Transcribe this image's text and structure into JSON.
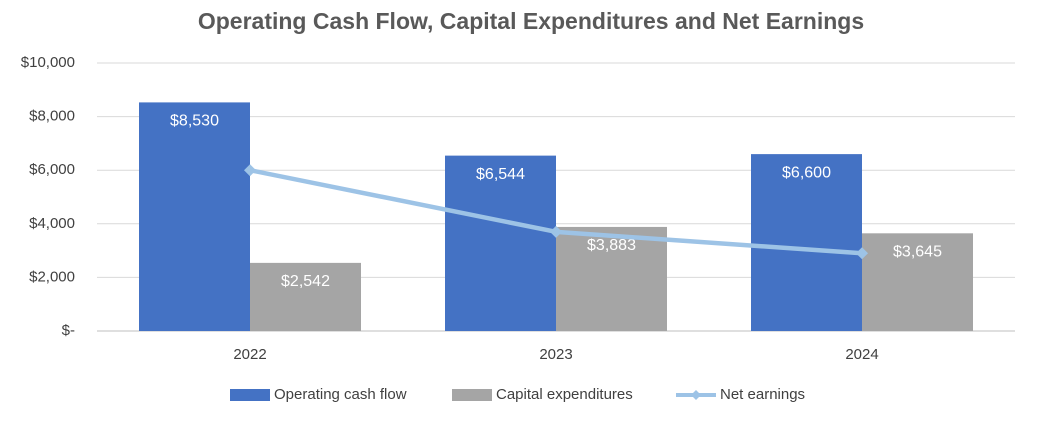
{
  "chart_data": {
    "type": "bar",
    "title": "Operating Cash Flow, Capital Expenditures and Net Earnings",
    "categories": [
      "2022",
      "2023",
      "2024"
    ],
    "series": [
      {
        "name": "Operating cash flow",
        "color": "#4472c4",
        "values": [
          8530,
          6544,
          6600
        ],
        "value_labels": [
          "$8,530",
          "$6,544",
          "$6,600"
        ]
      },
      {
        "name": "Capital expenditures",
        "color": "#a5a5a5",
        "values": [
          2542,
          3883,
          3645
        ],
        "value_labels": [
          "$2,542",
          "$3,883",
          "$3,645"
        ]
      },
      {
        "name": "Net earnings",
        "color": "#9dc3e6",
        "type": "line",
        "values": [
          6000,
          3700,
          2900
        ]
      }
    ],
    "ylim": [
      0,
      10000
    ],
    "yticks": [
      {
        "value": 0,
        "label": "$-"
      },
      {
        "value": 2000,
        "label": "$2,000"
      },
      {
        "value": 4000,
        "label": "$4,000"
      },
      {
        "value": 6000,
        "label": "$6,000"
      },
      {
        "value": 8000,
        "label": "$8,000"
      },
      {
        "value": 10000,
        "label": "$10,000"
      }
    ],
    "grid": true,
    "legend": "bottom"
  }
}
